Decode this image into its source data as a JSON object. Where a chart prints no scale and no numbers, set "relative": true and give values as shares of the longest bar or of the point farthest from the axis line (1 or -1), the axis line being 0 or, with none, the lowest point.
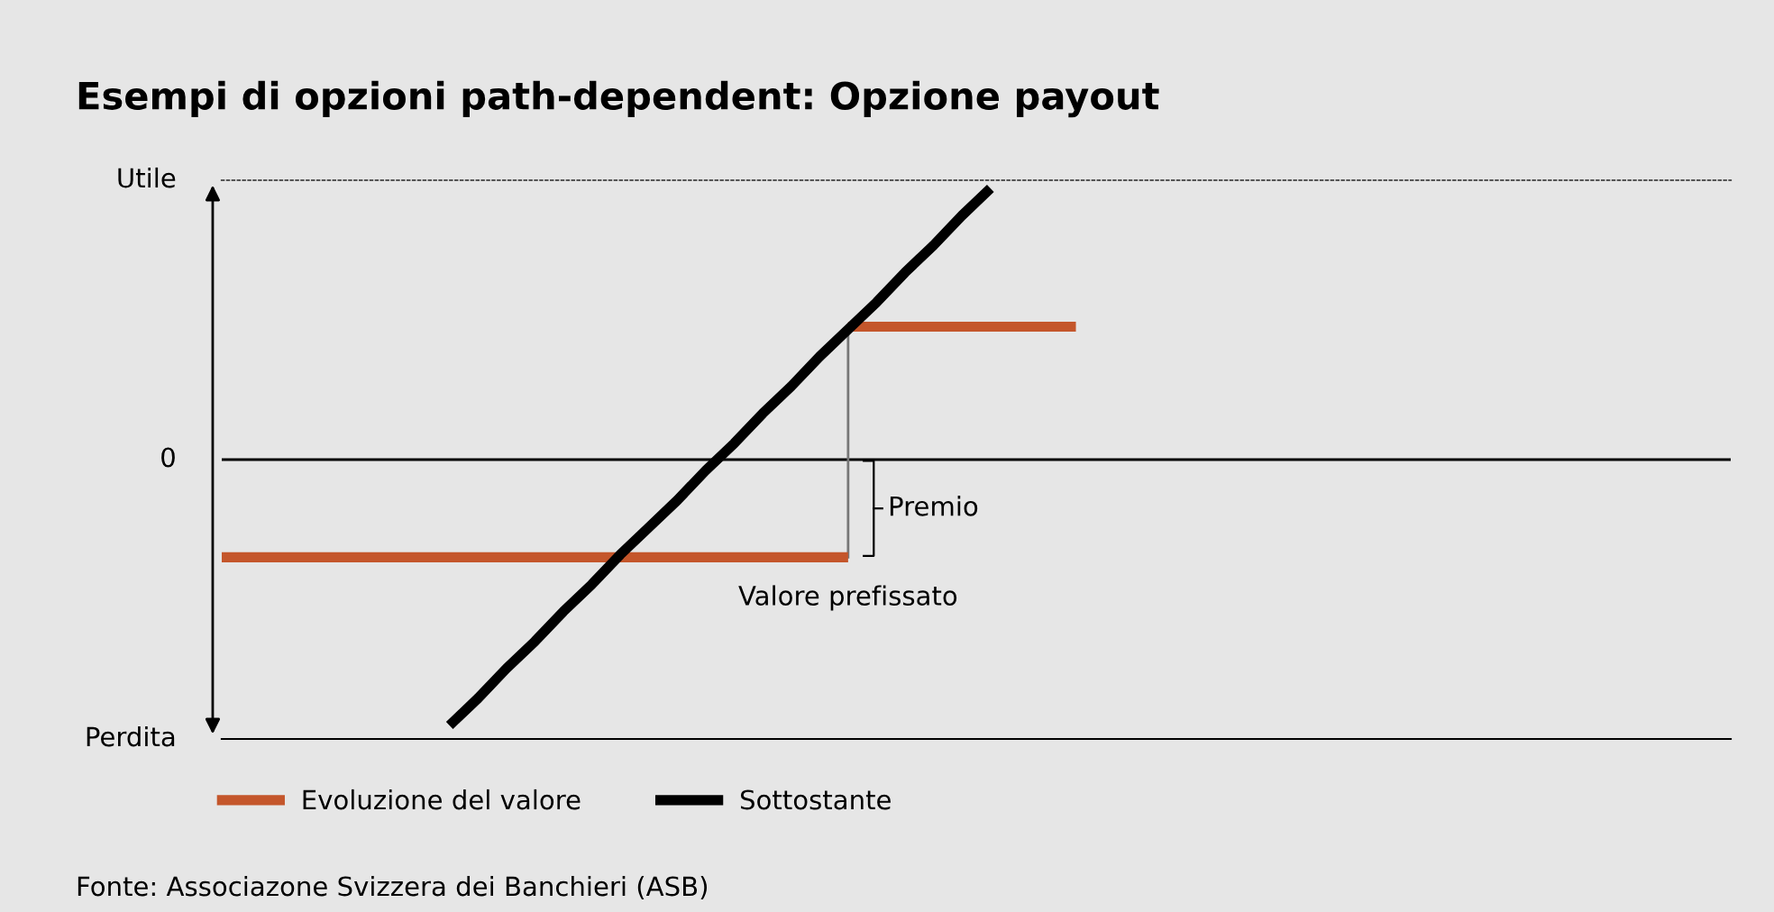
{
  "chart_data": {
    "type": "line",
    "title": "Esempi di opzioni path-dependent: Opzione payout",
    "relative": true,
    "legend": "bottom",
    "categories": [
      null,
      null,
      null,
      null,
      null,
      null,
      null,
      null,
      null,
      null,
      null,
      null,
      null,
      null,
      null,
      null,
      null,
      null,
      null,
      null,
      null,
      null,
      null,
      null,
      null,
      null,
      null,
      null,
      null,
      null,
      null,
      null,
      null,
      null,
      null,
      null,
      null,
      null,
      null,
      null,
      null,
      null,
      null,
      null,
      null,
      null,
      null,
      null,
      null,
      null,
      null,
      null,
      null,
      null
    ],
    "series": [
      {
        "name": "Evoluzione del valore",
        "type": "step",
        "color": "#c4562b",
        "values": [
          -0.36,
          -0.36,
          -0.36,
          -0.36,
          -0.36,
          -0.36,
          -0.36,
          -0.36,
          -0.36,
          -0.36,
          -0.36,
          -0.36,
          -0.36,
          -0.36,
          -0.36,
          -0.36,
          -0.36,
          -0.36,
          -0.36,
          -0.36,
          -0.36,
          -0.36,
          -0.36,
          0.49,
          0.49,
          0.49,
          0.49,
          0.49,
          0.49,
          0.49,
          0.49,
          null,
          null,
          null,
          null,
          null,
          null,
          null,
          null,
          null,
          null,
          null,
          null,
          null,
          null,
          null,
          null,
          null,
          null,
          null,
          null,
          null,
          null,
          null
        ]
      },
      {
        "name": "Sottostante",
        "color": "#000000",
        "values": [
          null,
          null,
          null,
          null,
          null,
          null,
          null,
          null,
          -0.98,
          -0.88,
          -0.77,
          -0.67,
          -0.56,
          -0.46,
          -0.35,
          -0.25,
          -0.15,
          -0.04,
          0.06,
          0.17,
          0.27,
          0.38,
          0.48,
          0.58,
          0.69,
          0.79,
          0.9,
          1.0,
          null,
          null,
          null,
          null,
          null,
          null,
          null,
          null,
          null,
          null,
          null,
          null,
          null,
          null,
          null,
          null,
          null,
          null,
          null,
          null,
          null,
          null,
          null,
          null,
          null,
          null
        ]
      }
    ],
    "annotations": [
      "Utile",
      "0",
      "Perdita",
      "Premio",
      "Valore prefissato",
      "Fonte: Associazone Svizzera dei Banchieri (ASB)"
    ]
  }
}
